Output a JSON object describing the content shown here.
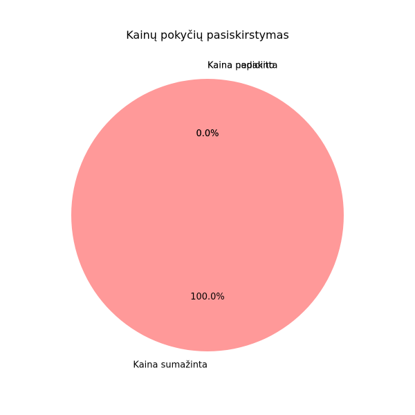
{
  "chart_data": {
    "type": "pie",
    "title": "Kainų pokyčių pasiskirstymas",
    "slices": [
      {
        "label": "Kaina sumažinta",
        "value": 100,
        "pct_label": "100.0%",
        "color": "#ff9999"
      },
      {
        "label": "Kaina padidinta",
        "value": 0,
        "pct_label": "0.0%",
        "color": "#66b3ff"
      },
      {
        "label": "Kaina nepakito",
        "value": 0,
        "pct_label": "0.0%",
        "color": "#99ff99"
      }
    ]
  }
}
